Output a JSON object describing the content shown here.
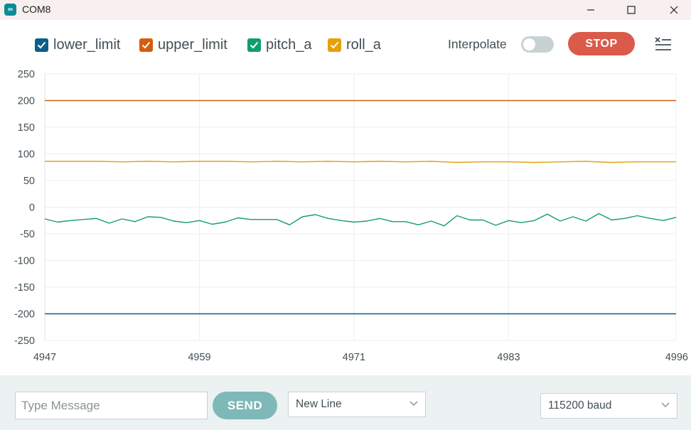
{
  "window": {
    "title": "COM8",
    "app_icon": "infinity-icon",
    "controls": [
      "minimize-icon",
      "maximize-icon",
      "close-icon"
    ]
  },
  "legend": {
    "items": [
      {
        "label": "lower_limit",
        "checked": true,
        "color": "#0b5f8a"
      },
      {
        "label": "upper_limit",
        "checked": true,
        "color": "#d35d0e"
      },
      {
        "label": "pitch_a",
        "checked": true,
        "color": "#129d71"
      },
      {
        "label": "roll_a",
        "checked": true,
        "color": "#e5a10b"
      }
    ],
    "interpolate_label": "Interpolate",
    "interpolate_on": false,
    "stop_label": "STOP",
    "clear_icon": "clear-list-icon"
  },
  "chart_data": {
    "type": "line",
    "ylim": [
      -250,
      250
    ],
    "y_ticks": [
      250,
      200,
      150,
      100,
      50,
      0,
      -50,
      -100,
      -150,
      -200,
      -250
    ],
    "xlim": [
      4947,
      4996
    ],
    "x_ticks": [
      4947,
      4959,
      4971,
      4983,
      4996
    ],
    "grid": true,
    "legend_placement": "top",
    "series": [
      {
        "name": "lower_limit",
        "color": "#0b5f8a",
        "x": [
          4947,
          4996
        ],
        "values": [
          -200,
          -200
        ]
      },
      {
        "name": "upper_limit",
        "color": "#d35d0e",
        "x": [
          4947,
          4996
        ],
        "values": [
          200,
          200
        ]
      },
      {
        "name": "pitch_a",
        "color": "#129d71",
        "x": [
          4947,
          4948,
          4949,
          4950,
          4951,
          4952,
          4953,
          4954,
          4955,
          4956,
          4957,
          4958,
          4959,
          4960,
          4961,
          4962,
          4963,
          4964,
          4965,
          4966,
          4967,
          4968,
          4969,
          4970,
          4971,
          4972,
          4973,
          4974,
          4975,
          4976,
          4977,
          4978,
          4979,
          4980,
          4981,
          4982,
          4983,
          4984,
          4985,
          4986,
          4987,
          4988,
          4989,
          4990,
          4991,
          4992,
          4993,
          4994,
          4995,
          4996
        ],
        "values": [
          -22,
          -28,
          -25,
          -23,
          -21,
          -30,
          -22,
          -27,
          -18,
          -19,
          -26,
          -29,
          -25,
          -32,
          -28,
          -20,
          -23,
          -23,
          -23,
          -33,
          -18,
          -14,
          -21,
          -25,
          -28,
          -26,
          -21,
          -27,
          -27,
          -33,
          -26,
          -35,
          -16,
          -24,
          -24,
          -34,
          -25,
          -29,
          -25,
          -13,
          -26,
          -18,
          -26,
          -12,
          -24,
          -21,
          -16,
          -21,
          -25,
          -19
        ]
      },
      {
        "name": "roll_a",
        "color": "#e5a10b",
        "x": [
          4947,
          4949,
          4951,
          4953,
          4955,
          4957,
          4959,
          4961,
          4963,
          4965,
          4967,
          4969,
          4971,
          4973,
          4975,
          4977,
          4979,
          4981,
          4983,
          4985,
          4987,
          4989,
          4991,
          4993,
          4996
        ],
        "values": [
          86,
          86,
          86,
          85,
          86,
          85,
          86,
          86,
          85,
          86,
          85,
          86,
          85,
          86,
          85,
          86,
          84,
          85,
          85,
          84,
          85,
          86,
          84,
          85,
          85
        ]
      }
    ]
  },
  "bottom": {
    "message_placeholder": "Type Message",
    "send_label": "SEND",
    "line_ending": "New Line",
    "baud_rate": "115200 baud"
  }
}
